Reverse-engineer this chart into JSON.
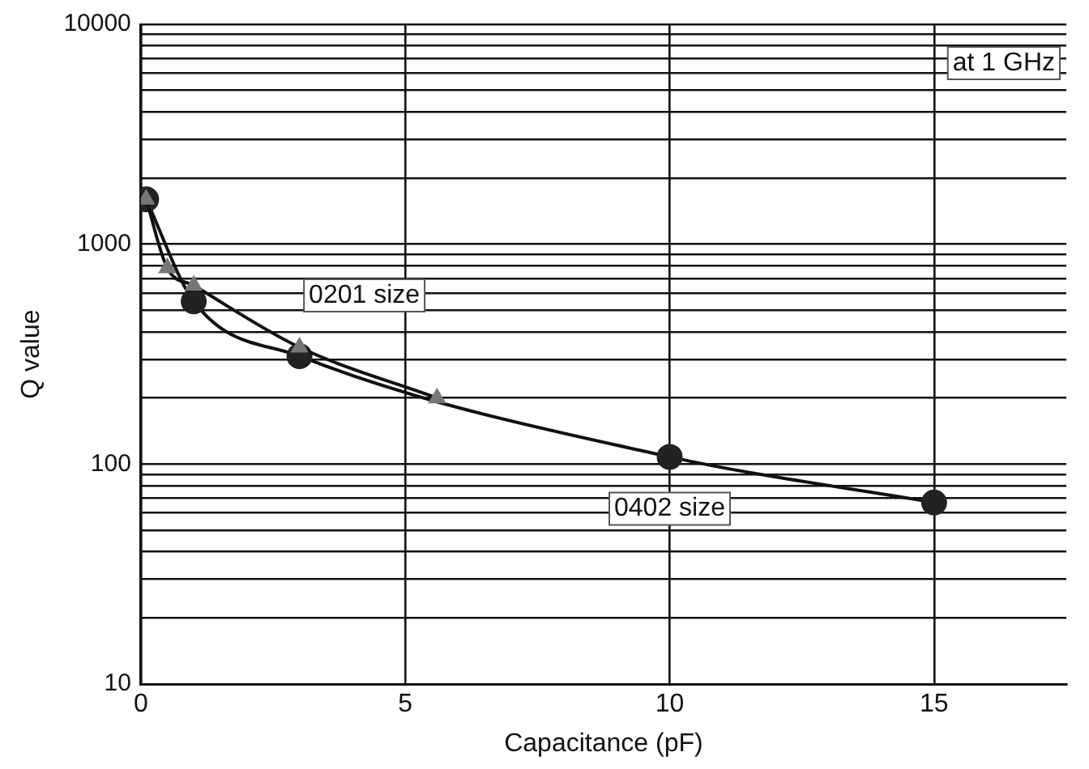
{
  "chart_data": {
    "type": "line",
    "xlabel": "Capacitance (pF)",
    "ylabel": "Q value",
    "log": "y",
    "grid": true,
    "legend": false,
    "xlim": [
      0,
      17.5
    ],
    "xticks": [
      0,
      5,
      10,
      15
    ],
    "ylim": [
      10,
      10000
    ],
    "yticks": [
      10,
      {
        "value": 20,
        "label": null
      },
      {
        "value": 30,
        "label": null
      },
      {
        "value": 40,
        "label": null
      },
      {
        "value": 50,
        "label": null
      },
      {
        "value": 60,
        "label": null
      },
      {
        "value": 70,
        "label": null
      },
      {
        "value": 80,
        "label": null
      },
      {
        "value": 90,
        "label": null
      },
      100,
      {
        "value": 200,
        "label": null
      },
      {
        "value": 300,
        "label": null
      },
      {
        "value": 400,
        "label": null
      },
      {
        "value": 500,
        "label": null
      },
      {
        "value": 600,
        "label": null
      },
      {
        "value": 700,
        "label": null
      },
      {
        "value": 800,
        "label": null
      },
      {
        "value": 900,
        "label": null
      },
      1000,
      {
        "value": 2000,
        "label": null
      },
      {
        "value": 3000,
        "label": null
      },
      {
        "value": 4000,
        "label": null
      },
      {
        "value": 5000,
        "label": null
      },
      {
        "value": 6000,
        "label": null
      },
      {
        "value": 7000,
        "label": null
      },
      {
        "value": 8000,
        "label": null
      },
      {
        "value": 9000,
        "label": null
      },
      10000
    ],
    "series": [
      {
        "name": "0201 size",
        "color": "#777777",
        "marker": "triangle",
        "x": [
          0.1,
          0.5,
          1,
          3,
          5.6
        ],
        "values": [
          1600,
          780,
          650,
          340,
          200
        ]
      },
      {
        "name": "0402 size",
        "color": "#222222",
        "marker": "circle",
        "x": [
          0.1,
          1,
          3,
          10,
          15
        ],
        "values": [
          1600,
          550,
          310,
          108,
          67
        ]
      }
    ],
    "annotations": [
      "at 1 GHz"
    ]
  }
}
